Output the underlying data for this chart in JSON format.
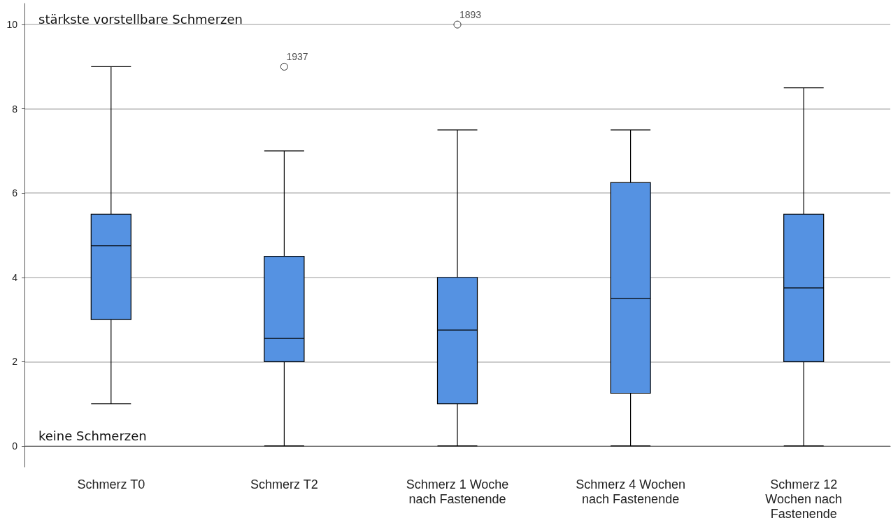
{
  "chart_data": {
    "type": "box",
    "categories": [
      "Schmerz T0",
      "Schmerz T2",
      "Schmerz 1 Woche\nnach Fastenende",
      "Schmerz 4 Wochen\nnach Fastenende",
      "Schmerz 12\nWochen nach\nFastenende"
    ],
    "color": "#5592e2",
    "boxes": [
      {
        "low": 1,
        "q1": 3,
        "median": 4.75,
        "q3": 5.5,
        "high": 9
      },
      {
        "low": 0,
        "q1": 2,
        "median": 2.55,
        "q3": 4.5,
        "high": 7,
        "outliers": [
          9
        ]
      },
      {
        "low": 0,
        "q1": 1,
        "median": 2.75,
        "q3": 4,
        "high": 7.5,
        "outliers": [
          10
        ]
      },
      {
        "low": 0,
        "q1": 1.25,
        "median": 3.5,
        "q3": 6.25,
        "high": 7.5
      },
      {
        "low": 0,
        "q1": 2,
        "median": 3.75,
        "q3": 5.5,
        "high": 8.5
      }
    ],
    "ylim": [
      -0.5,
      10.5
    ],
    "yticks": [
      0,
      2,
      4,
      6,
      8,
      10
    ],
    "grid": "y",
    "annotations": [
      "stärkste vorstellbare Schmerzen",
      "keine Schmerzen",
      "1937",
      "1893"
    ]
  }
}
